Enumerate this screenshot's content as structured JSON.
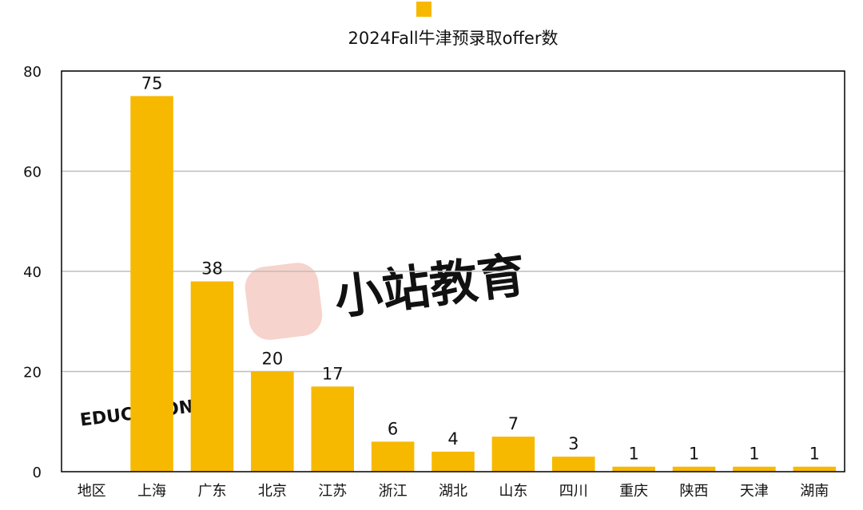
{
  "chart_data": {
    "type": "bar",
    "title": "2024Fall牛津预录取offer数",
    "legend": {
      "position": "top",
      "entries": [
        ""
      ]
    },
    "categories": [
      "地区",
      "上海",
      "广东",
      "北京",
      "江苏",
      "浙江",
      "湖北",
      "山东",
      "四川",
      "重庆",
      "陕西",
      "天津",
      "湖南"
    ],
    "series": [
      {
        "values": [
          null,
          75,
          38,
          20,
          17,
          6,
          4,
          7,
          3,
          1,
          1,
          1,
          1
        ]
      }
    ],
    "data_labels": [
      "",
      "75",
      "38",
      "20",
      "17",
      "6",
      "4",
      "7",
      "3",
      "1",
      "1",
      "1",
      "1"
    ],
    "ylim": [
      0,
      80
    ],
    "y_ticks": [
      0,
      20,
      40,
      60,
      80
    ],
    "y_tick_labels": [
      "0",
      "20",
      "40",
      "60",
      "80"
    ],
    "grid": true,
    "xlabel": "",
    "ylabel": ""
  },
  "colors": {
    "bar": "#F7B800",
    "grid": "#bdbdbd",
    "axis": "#000000",
    "text": "#111111"
  },
  "watermark": {
    "text": "小站教育",
    "sub_text": "EDUCATION"
  }
}
